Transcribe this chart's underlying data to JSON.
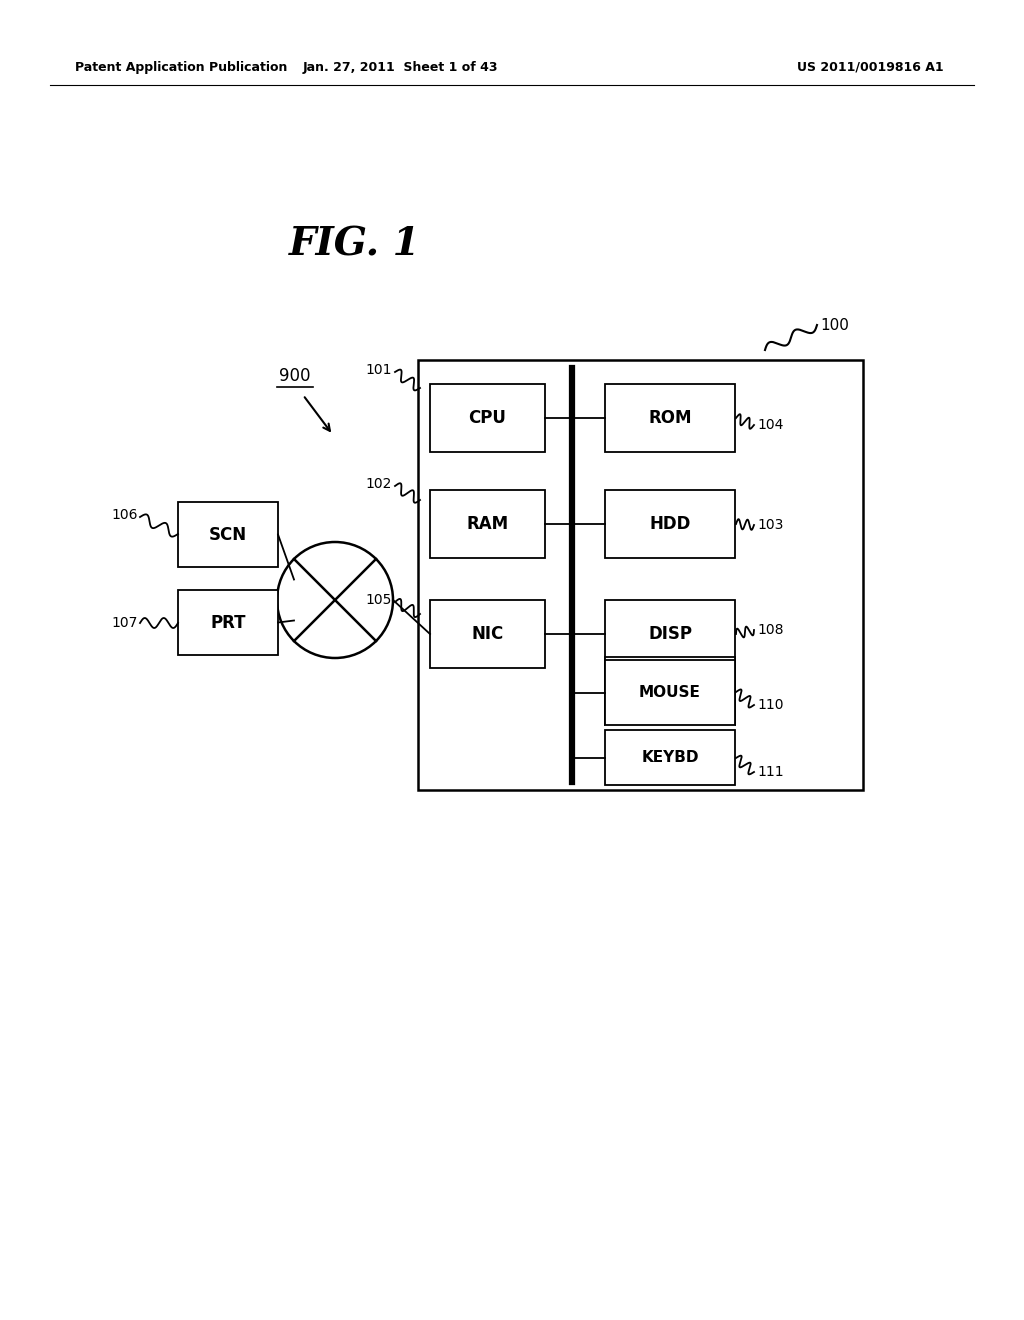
{
  "bg_color": "#ffffff",
  "header_left": "Patent Application Publication",
  "header_mid": "Jan. 27, 2011  Sheet 1 of 43",
  "header_right": "US 2011/0019816 A1",
  "fig_label": "FIG. 1",
  "label_900": "900",
  "label_100": "100",
  "label_101": "101",
  "label_102": "102",
  "label_103": "103",
  "label_104": "104",
  "label_105": "105",
  "label_106": "106",
  "label_107": "107",
  "label_108": "108",
  "label_110": "110",
  "label_111": "111"
}
